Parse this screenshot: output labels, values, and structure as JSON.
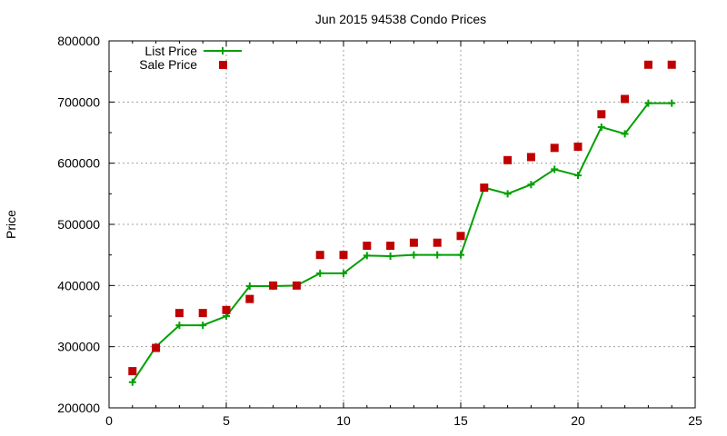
{
  "chart_data": {
    "type": "line",
    "title": "Jun 2015 94538 Condo Prices",
    "xlabel": "",
    "ylabel": "Price",
    "xlim": [
      0,
      25
    ],
    "ylim": [
      200000,
      800000
    ],
    "x_ticks": [
      0,
      5,
      10,
      15,
      20,
      25
    ],
    "y_ticks": [
      200000,
      300000,
      400000,
      500000,
      600000,
      700000,
      800000
    ],
    "grid": true,
    "legend_position": "top-left",
    "series": [
      {
        "name": "List Price",
        "style": "line+cross",
        "color": "#00a000",
        "x": [
          1,
          2,
          3,
          4,
          5,
          6,
          7,
          8,
          9,
          10,
          11,
          12,
          13,
          14,
          15,
          16,
          17,
          18,
          19,
          20,
          21,
          22,
          23,
          24
        ],
        "values": [
          242000,
          300000,
          335000,
          335000,
          350000,
          399000,
          399000,
          400000,
          420000,
          420000,
          449000,
          448000,
          450000,
          450000,
          450000,
          560000,
          550000,
          565000,
          590000,
          580000,
          659000,
          648000,
          698000,
          698000
        ]
      },
      {
        "name": "Sale Price",
        "style": "square",
        "color": "#c00000",
        "x": [
          1,
          2,
          3,
          4,
          5,
          6,
          7,
          8,
          9,
          10,
          11,
          12,
          13,
          14,
          15,
          16,
          17,
          18,
          19,
          20,
          21,
          22,
          23,
          24
        ],
        "values": [
          260000,
          298000,
          355000,
          355000,
          360000,
          378000,
          400000,
          400000,
          450000,
          450000,
          465000,
          465000,
          470000,
          470000,
          481000,
          560000,
          605000,
          610000,
          625000,
          627000,
          680000,
          705000,
          761000,
          761000
        ]
      }
    ]
  }
}
